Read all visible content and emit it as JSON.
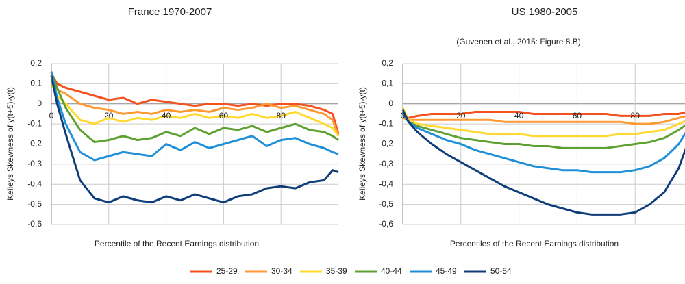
{
  "chart_data": [
    {
      "type": "line",
      "title": "France 1970-2007",
      "xlabel": "Percentile of the Recent Earnings distribution",
      "ylabel": "Kelleys Skewness of y(t+5)-y(t)",
      "x": [
        0,
        2,
        5,
        10,
        15,
        20,
        25,
        30,
        35,
        40,
        45,
        50,
        55,
        60,
        65,
        70,
        75,
        80,
        85,
        90,
        95,
        98,
        100
      ],
      "xlim": [
        0,
        100
      ],
      "ylim": [
        -0.6,
        0.2
      ],
      "xticks": [
        0,
        20,
        40,
        60,
        80
      ],
      "yticks": [
        {
          "value": 0.2,
          "label": "0,2"
        },
        {
          "value": 0.1,
          "label": "0,1"
        },
        0,
        {
          "value": -0.1,
          "label": "-0,1"
        },
        {
          "value": -0.2,
          "label": "-0,2"
        },
        {
          "value": -0.3,
          "label": "-0,3"
        },
        {
          "value": -0.4,
          "label": "-0,4"
        },
        {
          "value": -0.5,
          "label": "-0,5"
        },
        {
          "value": -0.6,
          "label": "-0,6"
        }
      ],
      "grid": true,
      "series": [
        {
          "name": "25-29",
          "color": "#f4511e",
          "values": [
            0.15,
            0.1,
            0.08,
            0.06,
            0.04,
            0.02,
            0.03,
            0.0,
            0.02,
            0.01,
            0.0,
            -0.01,
            0.0,
            0.0,
            -0.01,
            0.0,
            -0.01,
            0.0,
            0.0,
            -0.01,
            -0.03,
            -0.05,
            -0.15
          ]
        },
        {
          "name": "30-34",
          "color": "#ff9933",
          "values": [
            0.12,
            0.07,
            0.05,
            0.0,
            -0.02,
            -0.03,
            -0.05,
            -0.04,
            -0.05,
            -0.03,
            -0.04,
            -0.03,
            -0.04,
            -0.02,
            -0.03,
            -0.02,
            0.0,
            -0.02,
            -0.01,
            -0.03,
            -0.05,
            -0.08,
            -0.16
          ]
        },
        {
          "name": "35-39",
          "color": "#ffd92f",
          "values": [
            0.1,
            0.04,
            0.0,
            -0.08,
            -0.1,
            -0.07,
            -0.09,
            -0.07,
            -0.08,
            -0.06,
            -0.07,
            -0.05,
            -0.07,
            -0.06,
            -0.07,
            -0.05,
            -0.07,
            -0.06,
            -0.04,
            -0.07,
            -0.1,
            -0.12,
            -0.16
          ]
        },
        {
          "name": "40-44",
          "color": "#5ea130",
          "values": [
            0.16,
            0.08,
            -0.02,
            -0.13,
            -0.19,
            -0.18,
            -0.16,
            -0.18,
            -0.17,
            -0.14,
            -0.16,
            -0.12,
            -0.15,
            -0.12,
            -0.13,
            -0.11,
            -0.14,
            -0.12,
            -0.1,
            -0.13,
            -0.14,
            -0.16,
            -0.18
          ]
        },
        {
          "name": "45-49",
          "color": "#1f8fd8",
          "values": [
            0.16,
            0.03,
            -0.1,
            -0.24,
            -0.28,
            -0.26,
            -0.24,
            -0.25,
            -0.26,
            -0.2,
            -0.23,
            -0.19,
            -0.22,
            -0.2,
            -0.18,
            -0.16,
            -0.21,
            -0.18,
            -0.17,
            -0.2,
            -0.22,
            -0.24,
            -0.25
          ]
        },
        {
          "name": "50-54",
          "color": "#0f3d7a",
          "values": [
            0.14,
            0.0,
            -0.15,
            -0.38,
            -0.47,
            -0.49,
            -0.46,
            -0.48,
            -0.49,
            -0.46,
            -0.48,
            -0.45,
            -0.47,
            -0.49,
            -0.46,
            -0.45,
            -0.42,
            -0.41,
            -0.42,
            -0.39,
            -0.38,
            -0.33,
            -0.34
          ]
        }
      ]
    },
    {
      "type": "line",
      "title": "US 1980-2005",
      "subtitle": "(Guvenen et al., 2015: Figure 8.B)",
      "xlabel": "Percentiles of the Recent Earnings distribution",
      "ylabel": "Kelleys Skewness of y(t+5)-y(t)",
      "x": [
        0,
        2,
        5,
        10,
        15,
        20,
        25,
        30,
        35,
        40,
        45,
        50,
        55,
        60,
        65,
        70,
        75,
        80,
        85,
        90,
        95,
        98,
        100
      ],
      "xlim": [
        0,
        100
      ],
      "ylim": [
        -0.6,
        0.2
      ],
      "xticks": [
        0,
        20,
        40,
        60,
        80
      ],
      "yticks": [
        {
          "value": 0.2,
          "label": "0,2"
        },
        {
          "value": 0.1,
          "label": "0,1"
        },
        0,
        {
          "value": -0.1,
          "label": "-0,1"
        },
        {
          "value": -0.2,
          "label": "-0,2"
        },
        {
          "value": -0.3,
          "label": "-0,3"
        },
        {
          "value": -0.4,
          "label": "-0,4"
        },
        {
          "value": -0.5,
          "label": "-0,5"
        },
        {
          "value": -0.6,
          "label": "-0,6"
        }
      ],
      "grid": true,
      "series": [
        {
          "name": "25-29",
          "color": "#f4511e",
          "values": [
            -0.07,
            -0.07,
            -0.06,
            -0.05,
            -0.05,
            -0.05,
            -0.04,
            -0.04,
            -0.04,
            -0.04,
            -0.05,
            -0.05,
            -0.05,
            -0.05,
            -0.05,
            -0.05,
            -0.06,
            -0.06,
            -0.06,
            -0.05,
            -0.05,
            -0.04,
            -0.04
          ]
        },
        {
          "name": "30-34",
          "color": "#ff9933",
          "values": [
            -0.07,
            -0.08,
            -0.08,
            -0.08,
            -0.08,
            -0.08,
            -0.08,
            -0.08,
            -0.09,
            -0.09,
            -0.09,
            -0.09,
            -0.09,
            -0.09,
            -0.09,
            -0.09,
            -0.09,
            -0.1,
            -0.1,
            -0.09,
            -0.07,
            -0.06,
            -0.05
          ]
        },
        {
          "name": "35-39",
          "color": "#ffd92f",
          "values": [
            -0.02,
            -0.08,
            -0.1,
            -0.11,
            -0.12,
            -0.13,
            -0.14,
            -0.15,
            -0.15,
            -0.15,
            -0.16,
            -0.16,
            -0.16,
            -0.16,
            -0.16,
            -0.16,
            -0.15,
            -0.15,
            -0.14,
            -0.13,
            -0.1,
            -0.08,
            -0.07
          ]
        },
        {
          "name": "40-44",
          "color": "#5ea130",
          "values": [
            -0.04,
            -0.09,
            -0.11,
            -0.13,
            -0.15,
            -0.17,
            -0.18,
            -0.19,
            -0.2,
            -0.2,
            -0.21,
            -0.21,
            -0.22,
            -0.22,
            -0.22,
            -0.22,
            -0.21,
            -0.2,
            -0.19,
            -0.17,
            -0.13,
            -0.1,
            -0.08
          ]
        },
        {
          "name": "45-49",
          "color": "#1f8fd8",
          "values": [
            -0.05,
            -0.09,
            -0.12,
            -0.15,
            -0.18,
            -0.2,
            -0.23,
            -0.25,
            -0.27,
            -0.29,
            -0.31,
            -0.32,
            -0.33,
            -0.33,
            -0.34,
            -0.34,
            -0.34,
            -0.33,
            -0.31,
            -0.27,
            -0.2,
            -0.13,
            -0.08
          ]
        },
        {
          "name": "50-54",
          "color": "#0f3d7a",
          "values": [
            -0.03,
            -0.09,
            -0.14,
            -0.2,
            -0.25,
            -0.29,
            -0.33,
            -0.37,
            -0.41,
            -0.44,
            -0.47,
            -0.5,
            -0.52,
            -0.54,
            -0.55,
            -0.55,
            -0.55,
            -0.54,
            -0.5,
            -0.44,
            -0.32,
            -0.2,
            -0.1
          ]
        }
      ]
    }
  ]
}
